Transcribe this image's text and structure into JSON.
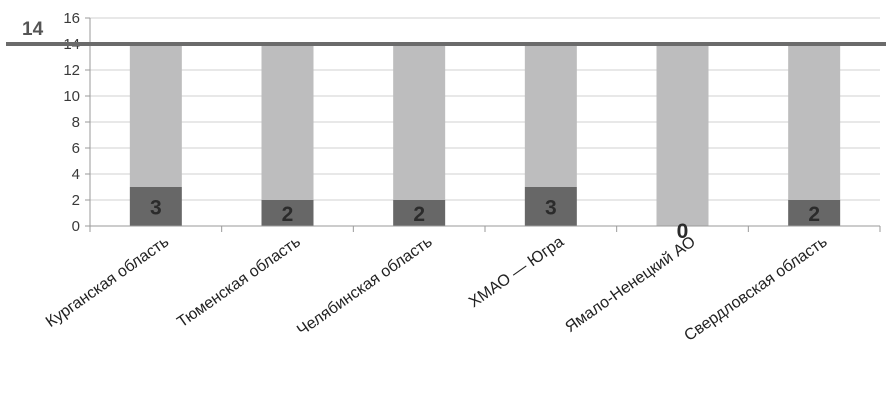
{
  "chart_data": {
    "type": "bar",
    "categories": [
      "Курганская область",
      "Тюменская область",
      "Челябинская область",
      "ХМАО — Югра",
      "Ямало-Ненецкий АО",
      "Свердловская область"
    ],
    "series": [
      {
        "values": [
          3,
          2,
          2,
          3,
          0,
          2
        ],
        "color": "#676767"
      },
      {
        "values": [
          11,
          12,
          12,
          11,
          14,
          12
        ],
        "color": "#bdbdbe"
      }
    ],
    "data_labels": [
      "3",
      "2",
      "2",
      "3",
      "0",
      "2"
    ],
    "reference_line": {
      "value": 14,
      "label": "14",
      "color": "#6b6b6b"
    },
    "ylim": [
      0,
      16
    ],
    "yticks": [
      0,
      2,
      4,
      6,
      8,
      10,
      12,
      14,
      16
    ],
    "stacked": true,
    "grid": true,
    "title": "",
    "xlabel": "",
    "ylabel": ""
  }
}
